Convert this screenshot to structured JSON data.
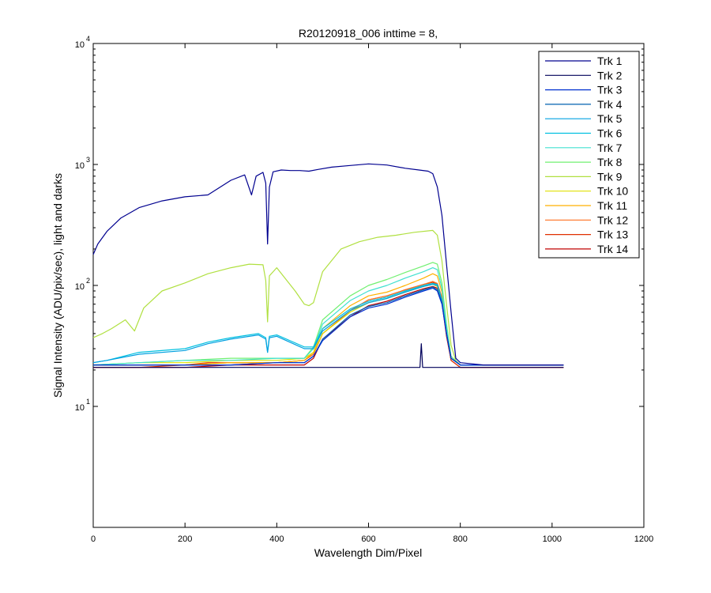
{
  "chart_data": {
    "type": "line",
    "title": "R20120918_006 inttime = 8,",
    "xlabel": "Wavelength Dim/Pixel",
    "ylabel": "Signal Intensity (ADU/pix/sec), light and darks",
    "xlim": [
      0,
      1200
    ],
    "ylim": [
      1,
      10000
    ],
    "yscale": "log",
    "grid": false,
    "legend_position": "top-right",
    "x_ticks": [
      "0",
      "200",
      "400",
      "600",
      "800",
      "1000",
      "1200"
    ],
    "y_ticks": [
      {
        "base": "10",
        "exp": "1"
      },
      {
        "base": "10",
        "exp": "2"
      },
      {
        "base": "10",
        "exp": "3"
      },
      {
        "base": "10",
        "exp": "4"
      }
    ],
    "series": [
      {
        "name": "Trk 1",
        "color": "#00008f",
        "x": [
          0,
          10,
          30,
          60,
          100,
          150,
          200,
          250,
          300,
          330,
          345,
          355,
          370,
          376,
          380,
          384,
          392,
          410,
          430,
          450,
          470,
          490,
          520,
          560,
          600,
          640,
          680,
          710,
          730,
          740,
          750,
          760,
          770,
          780,
          790,
          800,
          850,
          900,
          1000,
          1025
        ],
        "y": [
          180,
          220,
          280,
          360,
          440,
          500,
          540,
          560,
          740,
          820,
          560,
          800,
          860,
          700,
          220,
          650,
          870,
          900,
          890,
          890,
          880,
          910,
          950,
          980,
          1010,
          990,
          930,
          900,
          880,
          840,
          650,
          380,
          150,
          60,
          25,
          23,
          22,
          22,
          22,
          22
        ]
      },
      {
        "name": "Trk 2",
        "color": "#00005a",
        "x": [
          0,
          100,
          200,
          300,
          400,
          500,
          600,
          700,
          712,
          715,
          718,
          722,
          800,
          900,
          1025
        ],
        "y": [
          21,
          21,
          21,
          21,
          21,
          21,
          21,
          21,
          21,
          33,
          21,
          21,
          21,
          21,
          21
        ]
      },
      {
        "name": "Trk 3",
        "color": "#0030d0",
        "x": [
          0,
          200,
          300,
          400,
          460,
          480,
          500,
          560,
          600,
          640,
          680,
          720,
          740,
          750,
          760,
          770,
          780,
          800,
          1025
        ],
        "y": [
          22,
          22,
          22,
          23,
          23,
          26,
          35,
          55,
          65,
          70,
          80,
          90,
          95,
          90,
          70,
          40,
          25,
          22,
          22
        ]
      },
      {
        "name": "Trk 4",
        "color": "#0060b0",
        "x": [
          0,
          200,
          300,
          400,
          460,
          480,
          500,
          560,
          600,
          640,
          680,
          720,
          740,
          750,
          760,
          770,
          780,
          800,
          1025
        ],
        "y": [
          22,
          22,
          22,
          23,
          23,
          26,
          36,
          57,
          67,
          72,
          82,
          92,
          97,
          92,
          72,
          40,
          25,
          22,
          22
        ]
      },
      {
        "name": "Trk 5",
        "color": "#00a0e0",
        "x": [
          0,
          30,
          100,
          200,
          250,
          300,
          360,
          376,
          380,
          384,
          400,
          460,
          480,
          500,
          560,
          600,
          640,
          680,
          720,
          740,
          750,
          760,
          770,
          780,
          800,
          1025
        ],
        "y": [
          23,
          24,
          27,
          29,
          33,
          36,
          39,
          36,
          28,
          37,
          38,
          30,
          30,
          42,
          62,
          72,
          78,
          88,
          98,
          102,
          100,
          75,
          40,
          25,
          22,
          22
        ]
      },
      {
        "name": "Trk 6",
        "color": "#00c0e0",
        "x": [
          0,
          30,
          100,
          200,
          250,
          300,
          360,
          376,
          380,
          384,
          400,
          460,
          480,
          500,
          560,
          600,
          640,
          680,
          720,
          740,
          750,
          760,
          770,
          780,
          800,
          1025
        ],
        "y": [
          23,
          24,
          28,
          30,
          34,
          37,
          40,
          37,
          28,
          38,
          39,
          31,
          31,
          44,
          64,
          74,
          80,
          90,
          100,
          104,
          102,
          77,
          40,
          25,
          22,
          22
        ]
      },
      {
        "name": "Trk 7",
        "color": "#40e0d0",
        "x": [
          0,
          100,
          200,
          300,
          400,
          460,
          480,
          500,
          560,
          600,
          640,
          680,
          720,
          740,
          750,
          760,
          770,
          780,
          800,
          1025
        ],
        "y": [
          22,
          23,
          24,
          24,
          25,
          25,
          30,
          48,
          75,
          90,
          100,
          115,
          130,
          140,
          135,
          95,
          45,
          25,
          22,
          22
        ]
      },
      {
        "name": "Trk 8",
        "color": "#70f070",
        "x": [
          0,
          100,
          200,
          300,
          400,
          460,
          480,
          500,
          560,
          600,
          640,
          680,
          720,
          740,
          750,
          760,
          770,
          780,
          800,
          1025
        ],
        "y": [
          22,
          23,
          24,
          25,
          25,
          25,
          31,
          52,
          82,
          100,
          112,
          128,
          145,
          155,
          150,
          105,
          48,
          26,
          22,
          22
        ]
      },
      {
        "name": "Trk 9",
        "color": "#b0e040",
        "x": [
          0,
          20,
          40,
          70,
          90,
          110,
          150,
          200,
          250,
          300,
          340,
          370,
          376,
          380,
          384,
          400,
          440,
          460,
          470,
          480,
          500,
          540,
          580,
          620,
          660,
          700,
          740,
          750,
          760,
          770,
          780,
          790,
          800,
          1025
        ],
        "y": [
          37,
          40,
          44,
          52,
          42,
          65,
          90,
          105,
          125,
          140,
          150,
          148,
          110,
          50,
          120,
          140,
          90,
          70,
          68,
          72,
          130,
          200,
          230,
          250,
          260,
          275,
          285,
          260,
          160,
          70,
          32,
          24,
          22,
          22
        ]
      },
      {
        "name": "Trk 10",
        "color": "#e0e000",
        "x": [
          0,
          100,
          200,
          300,
          400,
          460,
          480,
          500,
          560,
          600,
          640,
          680,
          720,
          740,
          750,
          760,
          770,
          780,
          800,
          1025
        ],
        "y": [
          22,
          23,
          23,
          24,
          24,
          25,
          28,
          40,
          60,
          72,
          78,
          88,
          98,
          102,
          98,
          75,
          40,
          25,
          22,
          22
        ]
      },
      {
        "name": "Trk 11",
        "color": "#ffb000",
        "x": [
          0,
          100,
          200,
          300,
          400,
          460,
          480,
          500,
          560,
          600,
          640,
          680,
          720,
          740,
          750,
          760,
          770,
          780,
          800,
          1025
        ],
        "y": [
          22,
          22,
          22,
          23,
          23,
          24,
          28,
          44,
          68,
          82,
          88,
          100,
          115,
          125,
          120,
          88,
          42,
          25,
          22,
          22
        ]
      },
      {
        "name": "Trk 12",
        "color": "#ff7020",
        "x": [
          0,
          100,
          200,
          300,
          400,
          460,
          480,
          500,
          560,
          600,
          640,
          680,
          720,
          740,
          750,
          760,
          770,
          780,
          800,
          1025
        ],
        "y": [
          22,
          22,
          22,
          23,
          23,
          24,
          27,
          40,
          62,
          76,
          82,
          92,
          102,
          108,
          104,
          80,
          42,
          25,
          22,
          22
        ]
      },
      {
        "name": "Trk 13",
        "color": "#e03000",
        "x": [
          0,
          100,
          200,
          250,
          300,
          400,
          460,
          480,
          500,
          560,
          600,
          640,
          680,
          720,
          740,
          750,
          760,
          770,
          780,
          800,
          1025
        ],
        "y": [
          21,
          21,
          22,
          23,
          23,
          23,
          24,
          27,
          40,
          62,
          76,
          82,
          92,
          102,
          106,
          102,
          78,
          40,
          24,
          21,
          21
        ]
      },
      {
        "name": "Trk 14",
        "color": "#c00000",
        "x": [
          0,
          100,
          200,
          300,
          400,
          460,
          480,
          500,
          560,
          600,
          640,
          680,
          720,
          740,
          750,
          760,
          770,
          780,
          800,
          1025
        ],
        "y": [
          21,
          21,
          21,
          22,
          22,
          22,
          25,
          36,
          55,
          68,
          74,
          84,
          94,
          98,
          95,
          72,
          38,
          24,
          21,
          21
        ]
      }
    ]
  }
}
